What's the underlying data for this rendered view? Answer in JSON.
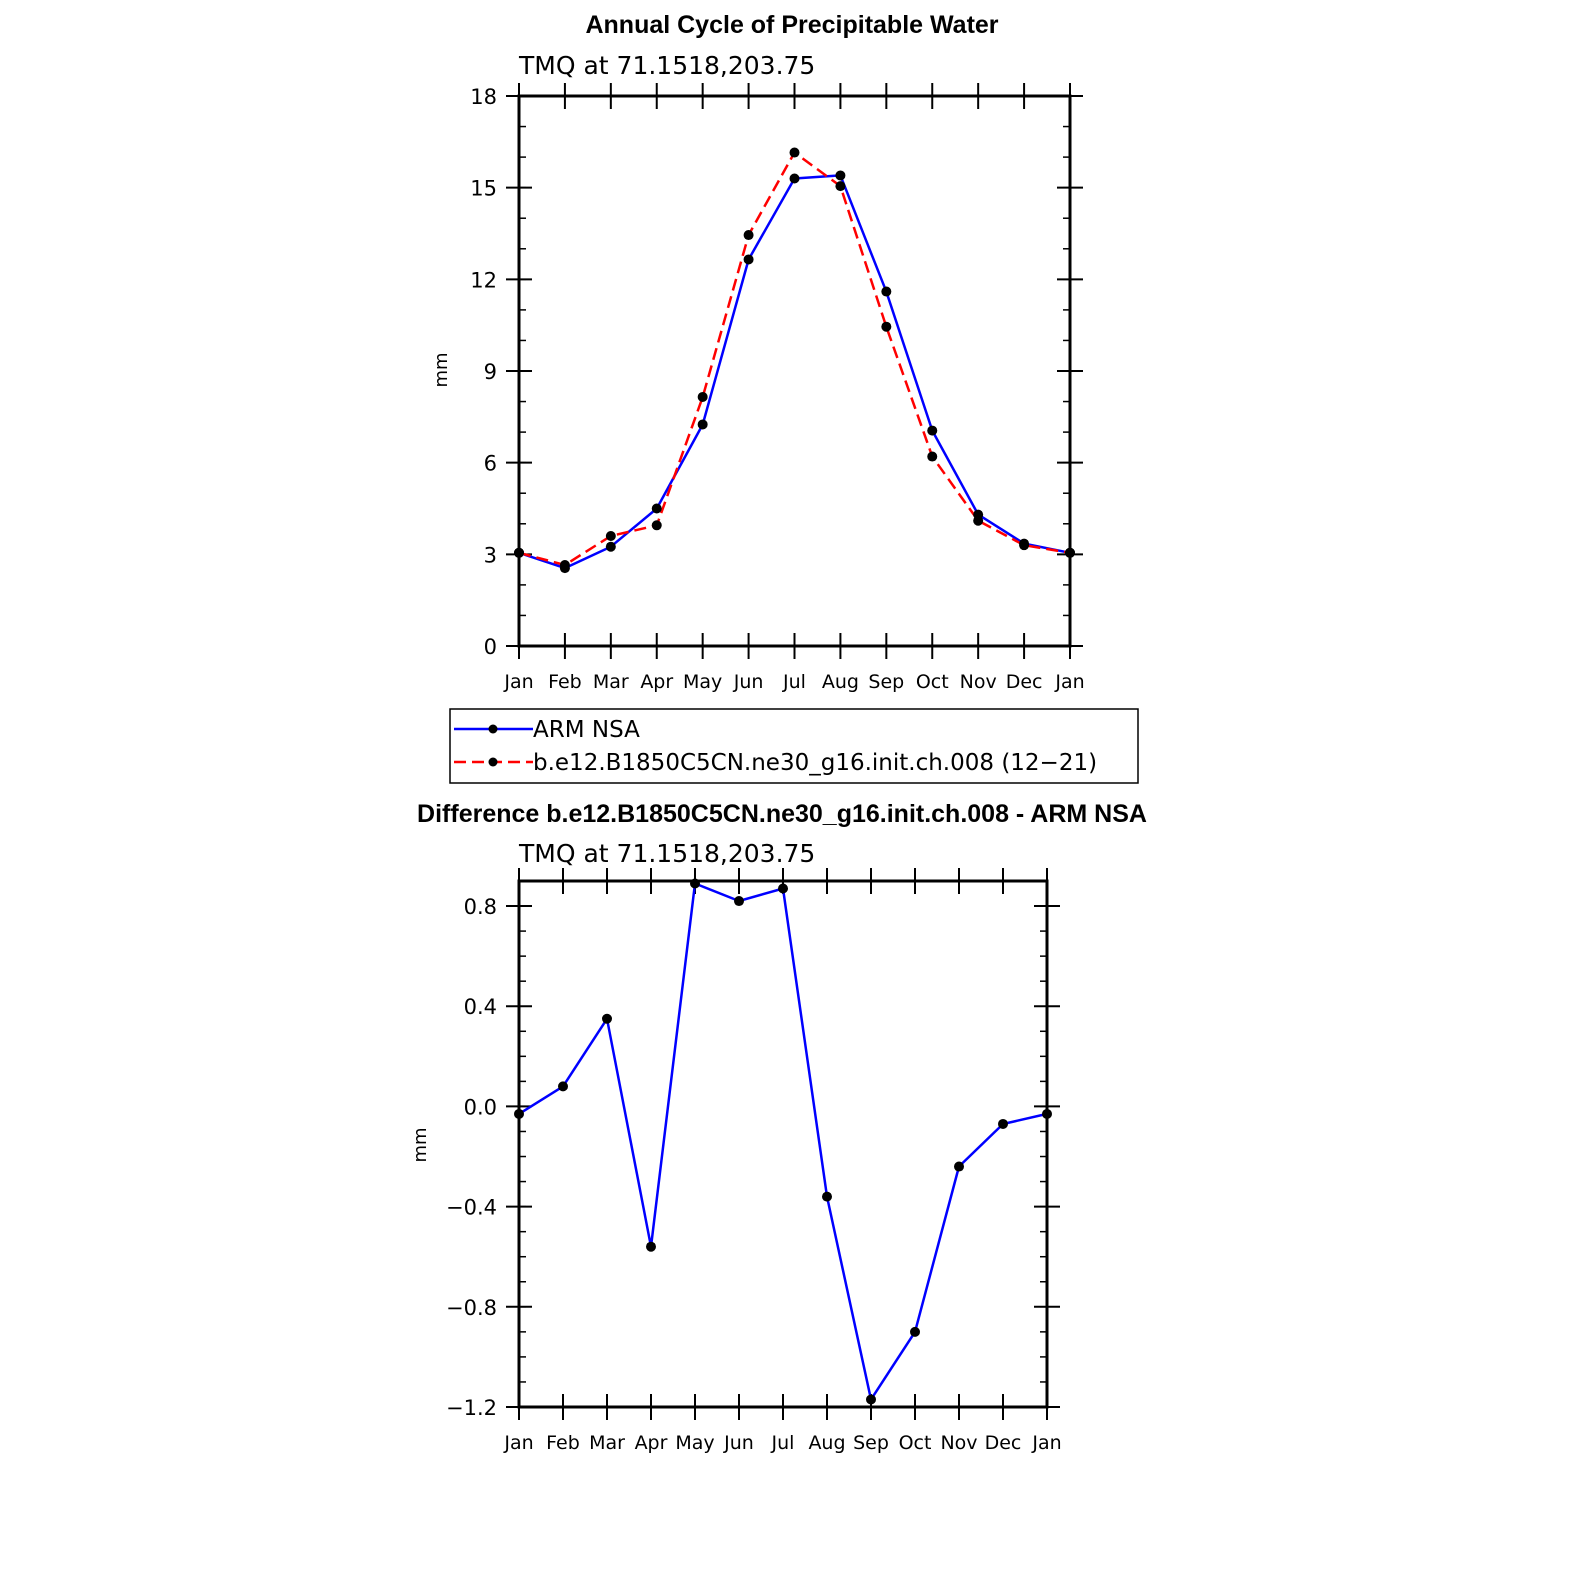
{
  "chart_data": [
    {
      "type": "line",
      "title": "Annual Cycle of Precipitable Water",
      "subtitle": "TMQ at 71.1518,203.75",
      "ylabel": "mm",
      "x_tick_labels": [
        "Jan",
        "Feb",
        "Mar",
        "Apr",
        "May",
        "Jun",
        "Jul",
        "Aug",
        "Sep",
        "Oct",
        "Nov",
        "Dec",
        "Jan"
      ],
      "ylim": [
        0,
        18
      ],
      "y_ticks": [
        "0",
        "3",
        "6",
        "9",
        "12",
        "15",
        "18"
      ],
      "grid": false,
      "legend_position": "below",
      "series": [
        {
          "name": "ARM NSA",
          "color": "#0000ff",
          "dash": "solid",
          "values": [
            3.05,
            2.55,
            3.25,
            4.5,
            7.25,
            12.65,
            15.3,
            15.4,
            11.6,
            7.05,
            4.3,
            3.35,
            3.05
          ]
        },
        {
          "name": "b.e12.B1850C5CN.ne30_g16.init.ch.008 (12−21)",
          "color": "#ff0000",
          "dash": "dashed",
          "values": [
            3.05,
            2.65,
            3.6,
            3.95,
            8.15,
            13.45,
            16.15,
            15.05,
            10.45,
            6.2,
            4.1,
            3.3,
            3.05
          ]
        }
      ]
    },
    {
      "type": "line",
      "title": "Difference b.e12.B1850C5CN.ne30_g16.init.ch.008 - ARM NSA",
      "subtitle": "TMQ at 71.1518,203.75",
      "ylabel": "mm",
      "x_tick_labels": [
        "Jan",
        "Feb",
        "Mar",
        "Apr",
        "May",
        "Jun",
        "Jul",
        "Aug",
        "Sep",
        "Oct",
        "Nov",
        "Dec",
        "Jan"
      ],
      "ylim": [
        -1.2,
        0.9
      ],
      "y_ticks": [
        "−1.2",
        "−0.8",
        "−0.4",
        "0.0",
        "0.4",
        "0.8"
      ],
      "grid": false,
      "series": [
        {
          "color": "#0000ff",
          "dash": "solid",
          "values": [
            -0.03,
            0.08,
            0.35,
            -0.56,
            0.89,
            0.82,
            0.87,
            -0.36,
            -1.17,
            -0.9,
            -0.24,
            -0.07,
            -0.03
          ]
        }
      ]
    }
  ]
}
